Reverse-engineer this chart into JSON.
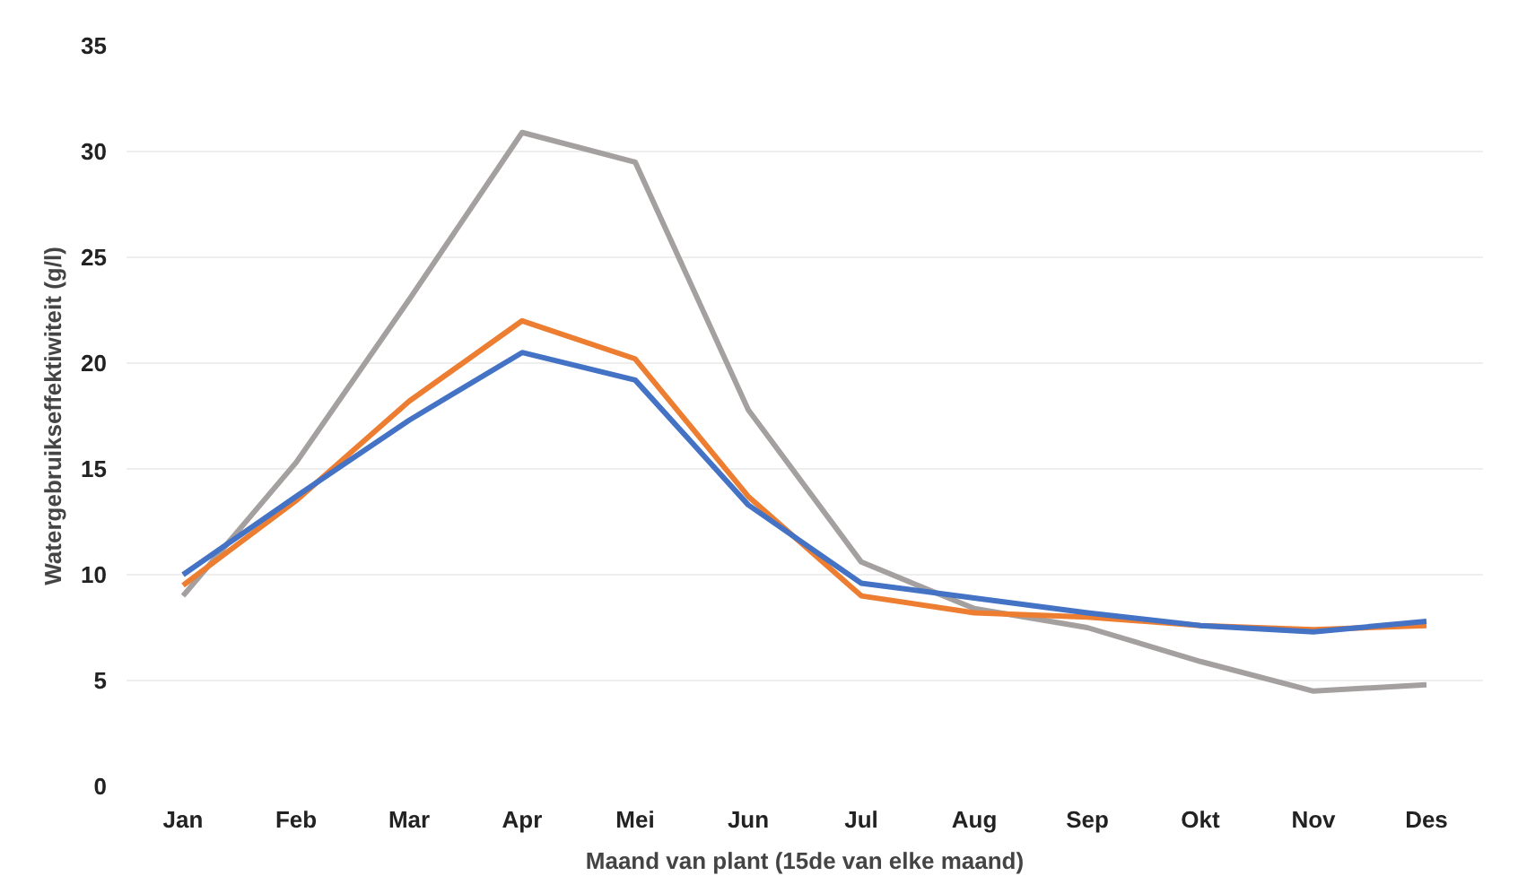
{
  "chart_data": {
    "type": "line",
    "xlabel": "Maand van plant (15de van elke maand)",
    "ylabel": "Watergebruikseffektiwiteit (g/l)",
    "categories": [
      "Jan",
      "Feb",
      "Mar",
      "Apr",
      "Mei",
      "Jun",
      "Jul",
      "Aug",
      "Sep",
      "Okt",
      "Nov",
      "Des"
    ],
    "ylim": [
      0,
      35
    ],
    "yticks": [
      0,
      5,
      10,
      15,
      20,
      25,
      30,
      35
    ],
    "grid": "y",
    "marker": "none",
    "line_style": "solid",
    "series": [
      {
        "color": "#a5a0a0",
        "values": [
          9.0,
          15.3,
          23.0,
          30.9,
          29.5,
          17.8,
          10.6,
          8.4,
          7.5,
          5.9,
          4.5,
          4.8
        ]
      },
      {
        "color": "#ed7d31",
        "values": [
          9.5,
          13.5,
          18.2,
          22.0,
          20.2,
          13.7,
          9.0,
          8.2,
          8.0,
          7.6,
          7.4,
          7.6
        ]
      },
      {
        "color": "#4472c4",
        "values": [
          10.0,
          13.7,
          17.3,
          20.5,
          19.2,
          13.3,
          9.6,
          8.9,
          8.2,
          7.6,
          7.3,
          7.8
        ]
      }
    ]
  }
}
